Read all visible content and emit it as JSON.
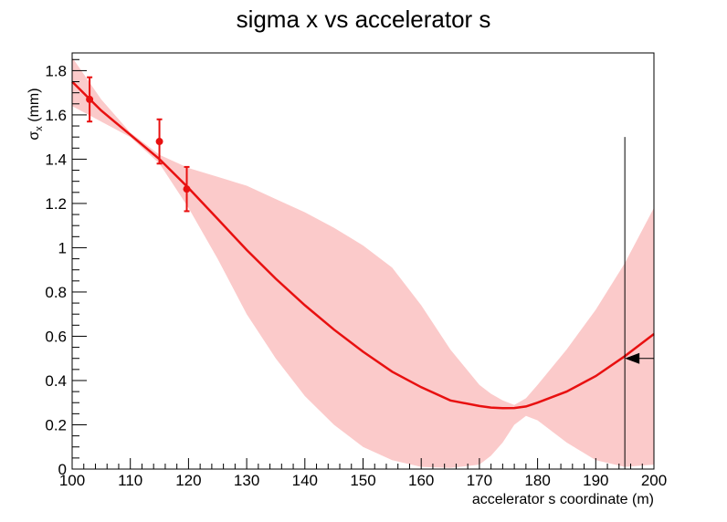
{
  "chart_data": {
    "type": "line",
    "title": "sigma x vs accelerator s",
    "xlabel": "accelerator s coordinate (m)",
    "ylabel": {
      "base": "σ",
      "sub": "x",
      "rest": " (mm)"
    },
    "xlim": [
      100,
      200
    ],
    "ylim": [
      0,
      1.88
    ],
    "xticks": [
      100,
      110,
      120,
      130,
      140,
      150,
      160,
      170,
      180,
      190,
      200
    ],
    "yticks": [
      0,
      0.2,
      0.4,
      0.6,
      0.8,
      1,
      1.2,
      1.4,
      1.6,
      1.8
    ],
    "grid": false,
    "points": [
      {
        "x": 103,
        "y": 1.67,
        "err": 0.1
      },
      {
        "x": 115,
        "y": 1.48,
        "err": 0.1
      },
      {
        "x": 119.7,
        "y": 1.265,
        "err": 0.1
      }
    ],
    "fit_curve": {
      "x": [
        100,
        105,
        110,
        115,
        120,
        125,
        130,
        135,
        140,
        145,
        150,
        155,
        160,
        165,
        170,
        172,
        174,
        176,
        178,
        180,
        185,
        190,
        195,
        200
      ],
      "y": [
        1.75,
        1.62,
        1.51,
        1.4,
        1.27,
        1.13,
        0.99,
        0.86,
        0.74,
        0.63,
        0.53,
        0.44,
        0.37,
        0.31,
        0.285,
        0.278,
        0.275,
        0.276,
        0.283,
        0.3,
        0.35,
        0.42,
        0.51,
        0.61
      ]
    },
    "error_band": {
      "x": [
        100,
        105,
        110,
        115,
        120,
        125,
        130,
        135,
        140,
        145,
        150,
        155,
        160,
        165,
        170,
        172,
        174,
        176,
        178,
        180,
        185,
        190,
        195,
        200
      ],
      "upper": [
        1.86,
        1.67,
        1.52,
        1.42,
        1.36,
        1.32,
        1.28,
        1.22,
        1.16,
        1.09,
        1.01,
        0.91,
        0.74,
        0.54,
        0.38,
        0.34,
        0.31,
        0.29,
        0.32,
        0.38,
        0.54,
        0.72,
        0.93,
        1.18
      ],
      "lower": [
        1.64,
        1.57,
        1.5,
        1.38,
        1.18,
        0.95,
        0.7,
        0.5,
        0.33,
        0.2,
        0.1,
        0.04,
        0.01,
        0.005,
        0.02,
        0.06,
        0.12,
        0.2,
        0.24,
        0.22,
        0.12,
        0.04,
        0.01,
        0.02
      ]
    },
    "marker_line": {
      "x": 195,
      "y_top": 1.5
    },
    "arrow": {
      "x_from": 200,
      "x_to": 195,
      "y": 0.5
    },
    "colors": {
      "fit": "#e81010",
      "band": "#fbcaca",
      "points": "#e81010",
      "marker": "#000000"
    }
  }
}
